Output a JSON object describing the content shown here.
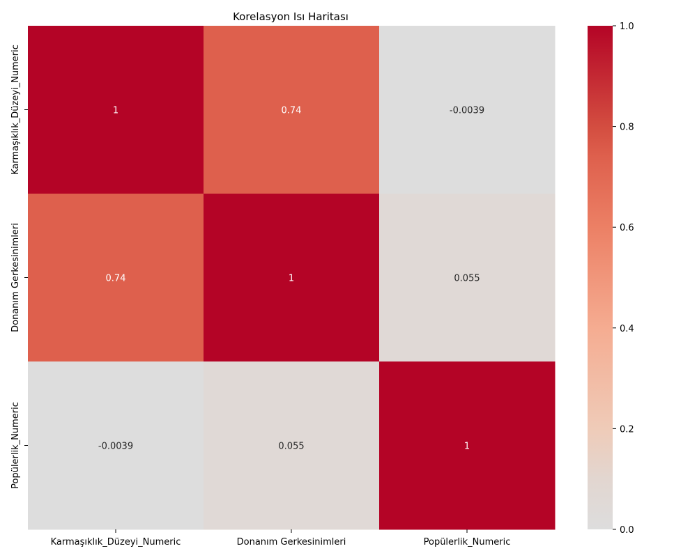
{
  "chart_data": {
    "type": "heatmap",
    "title": "Korelasyon Isı Haritası",
    "xlabel": "",
    "ylabel": "",
    "x_categories": [
      "Karmaşıklık_Düzeyi_Numeric",
      "Donanım Gerkesinimleri",
      "Popülerlik_Numeric"
    ],
    "y_categories": [
      "Karmaşıklık_Düzeyi_Numeric",
      "Donanım Gerkesinimleri",
      "Popülerlik_Numeric"
    ],
    "values": [
      [
        1,
        0.74,
        -0.0039
      ],
      [
        0.74,
        1,
        0.055
      ],
      [
        -0.0039,
        0.055,
        1
      ]
    ],
    "annotations": [
      [
        "1",
        "0.74",
        "-0.0039"
      ],
      [
        "0.74",
        "1",
        "0.055"
      ],
      [
        "-0.0039",
        "0.055",
        "1"
      ]
    ],
    "colormap": "coolwarm",
    "vmin": 0,
    "vmax": 1,
    "center": 0,
    "colorbar": {
      "ticks": [
        0.0,
        0.2,
        0.4,
        0.6,
        0.8,
        1.0
      ],
      "tick_labels": [
        "0.0",
        "0.2",
        "0.4",
        "0.6",
        "0.8",
        "1.0"
      ],
      "placement": "right"
    },
    "colors": {
      "low": "#dddddd",
      "high": "#b40426",
      "annotation_dark": "#262626",
      "annotation_light": "#ffffff"
    }
  }
}
